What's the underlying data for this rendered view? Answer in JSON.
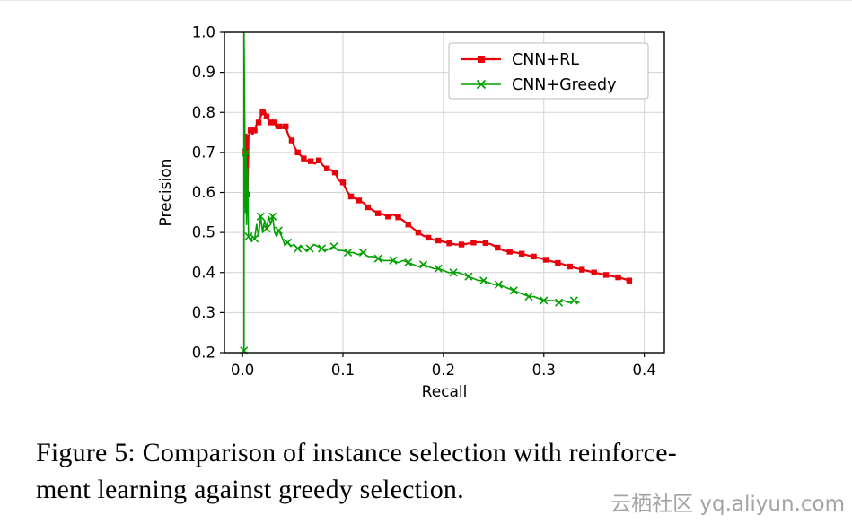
{
  "page": {
    "caption": {
      "line1": "Figure 5: Comparison of instance selection with reinforce-",
      "line2": "ment learning against greedy selection."
    },
    "watermark": "云栖社区 yq.aliyun.com"
  },
  "chart_data": {
    "type": "line",
    "title": "",
    "xlabel": "Recall",
    "ylabel": "Precision",
    "xlim": [
      -0.018,
      0.42
    ],
    "ylim": [
      0.2,
      1.0
    ],
    "xticks": [
      0.0,
      0.1,
      0.2,
      0.3,
      0.4
    ],
    "yticks": [
      0.2,
      0.3,
      0.4,
      0.5,
      0.6,
      0.7,
      0.8,
      0.9,
      1.0
    ],
    "grid": true,
    "grid_color": "#d2d2d2",
    "legend": {
      "position": "upper right"
    },
    "series": [
      {
        "name": "CNN+RL",
        "color": "#e8000b",
        "marker": "square",
        "marker_every": 2,
        "line_width": 2.2,
        "points": [
          [
            0.003,
            0.7
          ],
          [
            0.004,
            0.745
          ],
          [
            0.005,
            0.595
          ],
          [
            0.006,
            0.74
          ],
          [
            0.008,
            0.755
          ],
          [
            0.01,
            0.745
          ],
          [
            0.012,
            0.755
          ],
          [
            0.014,
            0.77
          ],
          [
            0.016,
            0.775
          ],
          [
            0.018,
            0.79
          ],
          [
            0.02,
            0.8
          ],
          [
            0.022,
            0.805
          ],
          [
            0.024,
            0.79
          ],
          [
            0.026,
            0.78
          ],
          [
            0.028,
            0.775
          ],
          [
            0.03,
            0.77
          ],
          [
            0.032,
            0.775
          ],
          [
            0.034,
            0.76
          ],
          [
            0.037,
            0.765
          ],
          [
            0.04,
            0.762
          ],
          [
            0.043,
            0.765
          ],
          [
            0.046,
            0.74
          ],
          [
            0.049,
            0.73
          ],
          [
            0.052,
            0.712
          ],
          [
            0.055,
            0.7
          ],
          [
            0.058,
            0.692
          ],
          [
            0.061,
            0.685
          ],
          [
            0.064,
            0.68
          ],
          [
            0.068,
            0.678
          ],
          [
            0.072,
            0.672
          ],
          [
            0.076,
            0.68
          ],
          [
            0.08,
            0.668
          ],
          [
            0.084,
            0.66
          ],
          [
            0.088,
            0.656
          ],
          [
            0.092,
            0.65
          ],
          [
            0.096,
            0.63
          ],
          [
            0.1,
            0.625
          ],
          [
            0.104,
            0.603
          ],
          [
            0.108,
            0.59
          ],
          [
            0.112,
            0.585
          ],
          [
            0.116,
            0.58
          ],
          [
            0.12,
            0.575
          ],
          [
            0.125,
            0.563
          ],
          [
            0.13,
            0.555
          ],
          [
            0.135,
            0.548
          ],
          [
            0.14,
            0.545
          ],
          [
            0.145,
            0.54
          ],
          [
            0.15,
            0.545
          ],
          [
            0.155,
            0.538
          ],
          [
            0.16,
            0.53
          ],
          [
            0.165,
            0.52
          ],
          [
            0.17,
            0.51
          ],
          [
            0.175,
            0.5
          ],
          [
            0.18,
            0.492
          ],
          [
            0.185,
            0.487
          ],
          [
            0.19,
            0.482
          ],
          [
            0.195,
            0.48
          ],
          [
            0.2,
            0.477
          ],
          [
            0.206,
            0.473
          ],
          [
            0.212,
            0.47
          ],
          [
            0.218,
            0.47
          ],
          [
            0.224,
            0.472
          ],
          [
            0.23,
            0.475
          ],
          [
            0.236,
            0.476
          ],
          [
            0.242,
            0.474
          ],
          [
            0.248,
            0.47
          ],
          [
            0.254,
            0.462
          ],
          [
            0.26,
            0.455
          ],
          [
            0.266,
            0.452
          ],
          [
            0.272,
            0.45
          ],
          [
            0.278,
            0.447
          ],
          [
            0.284,
            0.443
          ],
          [
            0.29,
            0.44
          ],
          [
            0.296,
            0.436
          ],
          [
            0.302,
            0.432
          ],
          [
            0.308,
            0.428
          ],
          [
            0.314,
            0.424
          ],
          [
            0.32,
            0.42
          ],
          [
            0.326,
            0.415
          ],
          [
            0.332,
            0.411
          ],
          [
            0.338,
            0.407
          ],
          [
            0.344,
            0.404
          ],
          [
            0.35,
            0.4
          ],
          [
            0.356,
            0.397
          ],
          [
            0.362,
            0.394
          ],
          [
            0.368,
            0.391
          ],
          [
            0.374,
            0.388
          ],
          [
            0.38,
            0.384
          ],
          [
            0.385,
            0.38
          ]
        ]
      },
      {
        "name": "CNN+Greedy",
        "color": "#00a000",
        "marker": "x",
        "marker_every": 3,
        "line_width": 1.6,
        "points": [
          [
            0.0015,
            0.205
          ],
          [
            0.0015,
            1.0
          ],
          [
            0.003,
            0.55
          ],
          [
            0.0035,
            0.7
          ],
          [
            0.004,
            0.52
          ],
          [
            0.005,
            0.66
          ],
          [
            0.006,
            0.49
          ],
          [
            0.008,
            0.48
          ],
          [
            0.01,
            0.49
          ],
          [
            0.012,
            0.485
          ],
          [
            0.014,
            0.52
          ],
          [
            0.016,
            0.49
          ],
          [
            0.018,
            0.54
          ],
          [
            0.02,
            0.5
          ],
          [
            0.022,
            0.53
          ],
          [
            0.024,
            0.51
          ],
          [
            0.026,
            0.54
          ],
          [
            0.028,
            0.52
          ],
          [
            0.03,
            0.54
          ],
          [
            0.032,
            0.5
          ],
          [
            0.034,
            0.49
          ],
          [
            0.036,
            0.505
          ],
          [
            0.039,
            0.49
          ],
          [
            0.042,
            0.47
          ],
          [
            0.045,
            0.475
          ],
          [
            0.048,
            0.465
          ],
          [
            0.051,
            0.47
          ],
          [
            0.055,
            0.46
          ],
          [
            0.059,
            0.465
          ],
          [
            0.063,
            0.455
          ],
          [
            0.067,
            0.46
          ],
          [
            0.071,
            0.47
          ],
          [
            0.075,
            0.465
          ],
          [
            0.079,
            0.46
          ],
          [
            0.083,
            0.455
          ],
          [
            0.087,
            0.46
          ],
          [
            0.091,
            0.465
          ],
          [
            0.095,
            0.455
          ],
          [
            0.1,
            0.455
          ],
          [
            0.105,
            0.45
          ],
          [
            0.11,
            0.45
          ],
          [
            0.115,
            0.445
          ],
          [
            0.12,
            0.45
          ],
          [
            0.125,
            0.44
          ],
          [
            0.13,
            0.44
          ],
          [
            0.135,
            0.435
          ],
          [
            0.14,
            0.43
          ],
          [
            0.145,
            0.43
          ],
          [
            0.15,
            0.43
          ],
          [
            0.155,
            0.425
          ],
          [
            0.16,
            0.43
          ],
          [
            0.165,
            0.425
          ],
          [
            0.17,
            0.42
          ],
          [
            0.175,
            0.415
          ],
          [
            0.18,
            0.42
          ],
          [
            0.185,
            0.415
          ],
          [
            0.19,
            0.41
          ],
          [
            0.195,
            0.41
          ],
          [
            0.2,
            0.405
          ],
          [
            0.205,
            0.4
          ],
          [
            0.21,
            0.4
          ],
          [
            0.215,
            0.4
          ],
          [
            0.22,
            0.395
          ],
          [
            0.225,
            0.39
          ],
          [
            0.23,
            0.385
          ],
          [
            0.235,
            0.38
          ],
          [
            0.24,
            0.38
          ],
          [
            0.245,
            0.375
          ],
          [
            0.25,
            0.37
          ],
          [
            0.255,
            0.37
          ],
          [
            0.26,
            0.365
          ],
          [
            0.265,
            0.36
          ],
          [
            0.27,
            0.355
          ],
          [
            0.275,
            0.35
          ],
          [
            0.28,
            0.345
          ],
          [
            0.285,
            0.34
          ],
          [
            0.29,
            0.34
          ],
          [
            0.295,
            0.335
          ],
          [
            0.3,
            0.33
          ],
          [
            0.305,
            0.33
          ],
          [
            0.31,
            0.33
          ],
          [
            0.315,
            0.325
          ],
          [
            0.32,
            0.33
          ],
          [
            0.325,
            0.325
          ],
          [
            0.33,
            0.33
          ],
          [
            0.335,
            0.325
          ]
        ]
      }
    ]
  }
}
